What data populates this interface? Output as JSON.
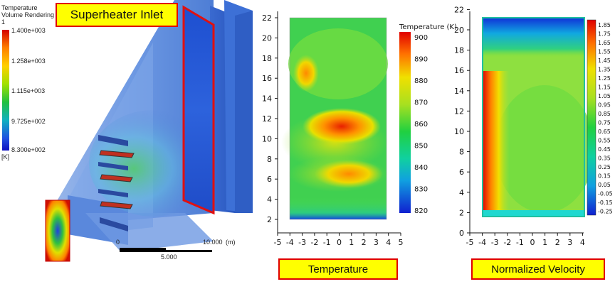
{
  "panel1": {
    "callout": "Superheater Inlet",
    "legend": {
      "title_line1": "Temperature",
      "title_line2": "Volume Rendering 1",
      "ticks": [
        "1.400e+003",
        "1.258e+003",
        "1.115e+003",
        "9.725e+002",
        "8.300e+002"
      ],
      "unit": "[K]"
    },
    "scale": {
      "zero": "0",
      "major": "10.000",
      "unit": "(m)",
      "mid": "5.000"
    }
  },
  "panel2": {
    "caption": "Temperature",
    "x_ticks": [
      "-5",
      "-4",
      "-3",
      "-2",
      "-1",
      "0",
      "1",
      "2",
      "3",
      "4",
      "5"
    ],
    "y_ticks": [
      "2",
      "4",
      "6",
      "8",
      "10",
      "12",
      "14",
      "16",
      "18",
      "20",
      "22"
    ],
    "colorbar_title": "Temperature (K)",
    "colorbar_ticks": [
      "900",
      "890",
      "880",
      "870",
      "860",
      "850",
      "840",
      "830",
      "820"
    ]
  },
  "panel3": {
    "caption": "Normalized Velocity",
    "x_ticks": [
      "-5",
      "-4",
      "-3",
      "-2",
      "-1",
      "0",
      "1",
      "2",
      "3",
      "4"
    ],
    "y_ticks": [
      "0",
      "2",
      "4",
      "6",
      "8",
      "10",
      "12",
      "14",
      "16",
      "18",
      "20",
      "22"
    ],
    "colorbar_ticks": [
      "1.85",
      "1.75",
      "1.65",
      "1.55",
      "1.45",
      "1.35",
      "1.25",
      "1.15",
      "1.05",
      "0.95",
      "0.85",
      "0.75",
      "0.65",
      "0.55",
      "0.45",
      "0.35",
      "0.25",
      "0.15",
      "0.05",
      "-0.05",
      "-0.15",
      "-0.25"
    ]
  },
  "colors": {
    "callout_fill": "#ffff00",
    "callout_border": "#e00000",
    "duct": "#4a7bd6"
  }
}
